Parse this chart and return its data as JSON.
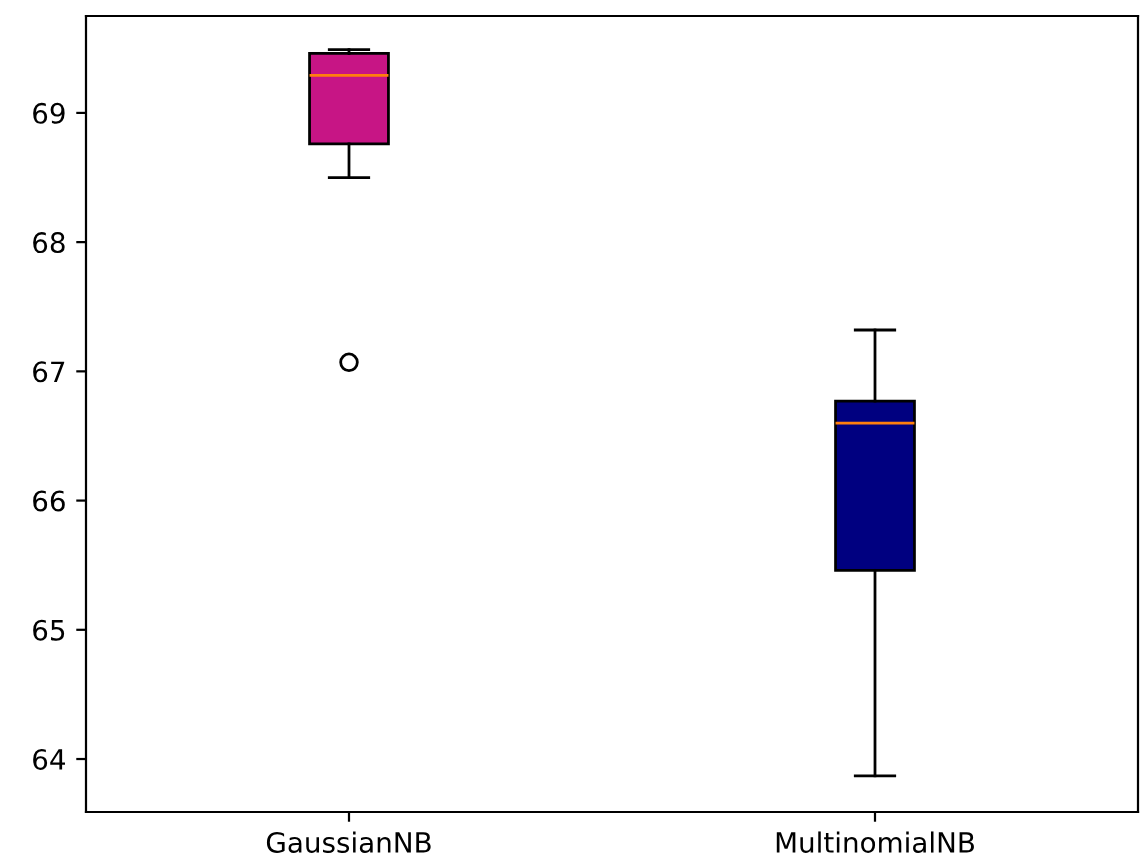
{
  "chart_data": {
    "type": "box",
    "categories": [
      "GaussianNB",
      "MultinomialNB"
    ],
    "boxes": [
      {
        "low": 68.5,
        "q1": 68.76,
        "median": 69.29,
        "q3": 69.46,
        "high": 69.49,
        "outliers": [
          67.07
        ]
      },
      {
        "low": 63.87,
        "q1": 65.46,
        "median": 66.6,
        "q3": 66.77,
        "high": 67.32
      }
    ],
    "colors": [
      "#c71585",
      "#000080"
    ],
    "ylim": [
      63.59,
      69.75
    ],
    "yticks": [
      64,
      65,
      66,
      67,
      68,
      69
    ],
    "grid": false,
    "legend": false
  }
}
